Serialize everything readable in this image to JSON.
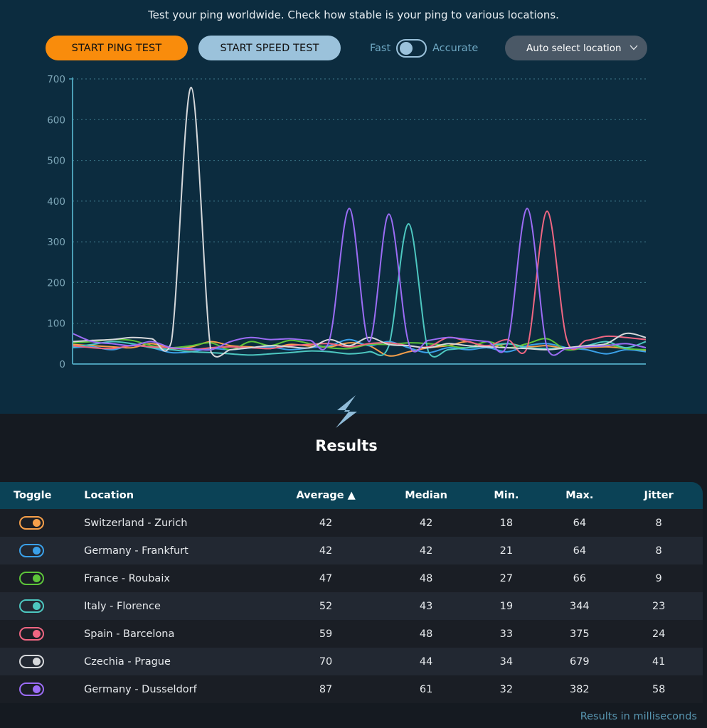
{
  "header": {
    "tagline": "Test your ping worldwide. Check how stable is your ping to various locations.",
    "start_ping_label": "START PING TEST",
    "start_speed_label": "START SPEED TEST",
    "mode_fast_label": "Fast",
    "mode_accurate_label": "Accurate",
    "mode_selected": "Fast",
    "location_select_value": "Auto select location",
    "colors": {
      "ping_button": "#f98c0c",
      "speed_button": "#9bc2db",
      "select_bg": "#4a5866"
    }
  },
  "chart_data": {
    "type": "line",
    "title": "",
    "xlabel": "",
    "ylabel": "",
    "ylim": [
      0,
      700
    ],
    "yticks": [
      "0",
      "100",
      "200",
      "300",
      "400",
      "500",
      "600",
      "700"
    ],
    "grid": true,
    "legend": "none",
    "x": [
      1,
      2,
      3,
      4,
      5,
      6,
      7,
      8,
      9,
      10,
      11,
      12,
      13,
      14,
      15,
      16,
      17,
      18,
      19,
      20,
      21,
      22,
      23,
      24,
      25,
      26,
      27,
      28,
      29,
      30
    ],
    "series": [
      {
        "name": "Switzerland - Zurich",
        "color": "#f7a04a",
        "values": [
          48,
          45,
          42,
          40,
          50,
          38,
          42,
          55,
          45,
          42,
          38,
          48,
          44,
          42,
          52,
          45,
          20,
          30,
          40,
          45,
          55,
          40,
          50,
          42,
          45,
          38,
          40,
          42,
          38,
          32
        ]
      },
      {
        "name": "Germany - Frankfurt",
        "color": "#3aa0e8",
        "values": [
          40,
          42,
          35,
          46,
          40,
          28,
          30,
          38,
          35,
          40,
          42,
          35,
          40,
          45,
          60,
          45,
          55,
          40,
          28,
          40,
          35,
          40,
          30,
          45,
          50,
          40,
          35,
          25,
          35,
          30
        ]
      },
      {
        "name": "France - Roubaix",
        "color": "#5dc43a",
        "values": [
          52,
          55,
          60,
          58,
          45,
          40,
          45,
          52,
          35,
          55,
          45,
          58,
          50,
          40,
          38,
          48,
          48,
          52,
          50,
          45,
          40,
          55,
          40,
          50,
          62,
          35,
          42,
          48,
          38,
          35
        ]
      },
      {
        "name": "Italy - Florence",
        "color": "#4dc7c0",
        "values": [
          42,
          48,
          55,
          50,
          40,
          35,
          30,
          28,
          25,
          22,
          25,
          28,
          32,
          30,
          25,
          30,
          45,
          344,
          30,
          35,
          40,
          45,
          50,
          40,
          38,
          40,
          45,
          55,
          40,
          55
        ]
      },
      {
        "name": "Spain - Barcelona",
        "color": "#f06682",
        "values": [
          45,
          40,
          38,
          45,
          42,
          40,
          35,
          40,
          42,
          40,
          38,
          45,
          48,
          50,
          42,
          50,
          52,
          45,
          42,
          65,
          55,
          45,
          60,
          40,
          375,
          60,
          58,
          68,
          65,
          60
        ]
      },
      {
        "name": "Czechia - Prague",
        "color": "#d6d8db",
        "values": [
          55,
          58,
          60,
          65,
          62,
          55,
          679,
          30,
          35,
          40,
          45,
          42,
          40,
          60,
          45,
          65,
          48,
          45,
          40,
          50,
          45,
          42,
          40,
          38,
          35,
          40,
          45,
          50,
          75,
          65
        ]
      },
      {
        "name": "Germany - Dusseldorf",
        "color": "#9b6cf5",
        "values": [
          75,
          55,
          50,
          45,
          55,
          40,
          38,
          35,
          55,
          65,
          60,
          62,
          58,
          60,
          382,
          55,
          368,
          52,
          58,
          65,
          60,
          55,
          50,
          382,
          40,
          38,
          42,
          45,
          50,
          40
        ]
      }
    ]
  },
  "results": {
    "title": "Results",
    "columns": [
      "Toggle",
      "Location",
      "Average ▲",
      "Median",
      "Min.",
      "Max.",
      "Jitter"
    ],
    "rows": [
      {
        "color": "#f7a04a",
        "enabled": true,
        "location": "Switzerland - Zurich",
        "average": "42",
        "median": "42",
        "min": "18",
        "max": "64",
        "jitter": "8"
      },
      {
        "color": "#3aa0e8",
        "enabled": true,
        "location": "Germany - Frankfurt",
        "average": "42",
        "median": "42",
        "min": "21",
        "max": "64",
        "jitter": "8"
      },
      {
        "color": "#5dc43a",
        "enabled": true,
        "location": "France - Roubaix",
        "average": "47",
        "median": "48",
        "min": "27",
        "max": "66",
        "jitter": "9"
      },
      {
        "color": "#4dc7c0",
        "enabled": true,
        "location": "Italy - Florence",
        "average": "52",
        "median": "43",
        "min": "19",
        "max": "344",
        "jitter": "23"
      },
      {
        "color": "#f06682",
        "enabled": true,
        "location": "Spain - Barcelona",
        "average": "59",
        "median": "48",
        "min": "33",
        "max": "375",
        "jitter": "24"
      },
      {
        "color": "#d6d8db",
        "enabled": true,
        "location": "Czechia - Prague",
        "average": "70",
        "median": "44",
        "min": "34",
        "max": "679",
        "jitter": "41"
      },
      {
        "color": "#9b6cf5",
        "enabled": true,
        "location": "Germany - Dusseldorf",
        "average": "87",
        "median": "61",
        "min": "32",
        "max": "382",
        "jitter": "58"
      }
    ],
    "footnote": "Results in milliseconds"
  }
}
